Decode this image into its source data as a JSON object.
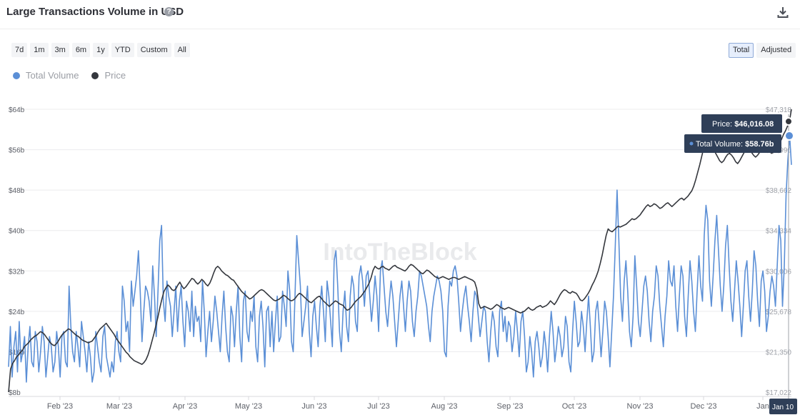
{
  "header": {
    "title": "Large Transactions Volume in USD",
    "help_glyph": "?"
  },
  "ranges": [
    "7d",
    "1m",
    "3m",
    "6m",
    "1y",
    "YTD",
    "Custom",
    "All"
  ],
  "modes": {
    "total": "Total",
    "adjusted": "Adjusted",
    "selected": "total"
  },
  "watermark": "IntoTheBlock",
  "tooltip": {
    "price_label": "Price:",
    "price_value": "$46,016.08",
    "volume_label": "Total Volume:",
    "volume_value": "$58.76b",
    "date": "Jan 10"
  },
  "colors": {
    "volume": "#5b8fd6",
    "price": "#34373d",
    "tooltip_bg": "#2f3f58"
  },
  "chart_data": {
    "type": "line",
    "x_tick_labels": [
      "Feb '23",
      "Mar '23",
      "Apr '23",
      "May '23",
      "Jun '23",
      "Jul '23",
      "Aug '23",
      "Sep '23",
      "Oct '23",
      "Nov '23",
      "Dec '23",
      "Jan"
    ],
    "y_left_ticks": [
      "$8b",
      "$16b",
      "$24b",
      "$32b",
      "$40b",
      "$48b",
      "$56b",
      "$64b"
    ],
    "y_left_range": [
      8,
      64
    ],
    "y_right_ticks": [
      "$17,022",
      "$21,350",
      "$25,678",
      "$30,006",
      "$34,334",
      "$38,662",
      "$42,990",
      "$47,318"
    ],
    "y_right_range": [
      17022,
      47318
    ],
    "legend_position": "top-left",
    "grid": "horizontal",
    "series": [
      {
        "name": "Total Volume",
        "axis": "left",
        "values": [
          13,
          21,
          11,
          17,
          20,
          12,
          22,
          14,
          16,
          19,
          10,
          17,
          21,
          14,
          13,
          20,
          18,
          12,
          16,
          21,
          18,
          11,
          15,
          19,
          17,
          12,
          14,
          20,
          17,
          11,
          19,
          20,
          14,
          13,
          29,
          21,
          16,
          14,
          20,
          17,
          13,
          22,
          19,
          16,
          12,
          18,
          15,
          10,
          12,
          20,
          17,
          14,
          12,
          19,
          21,
          15,
          13,
          11,
          14,
          12,
          18,
          20,
          16,
          14,
          29,
          26,
          20,
          22,
          16,
          30,
          25,
          28,
          31,
          36,
          28,
          18,
          24,
          29,
          28,
          26,
          22,
          33,
          27,
          19,
          28,
          38,
          41,
          26,
          22,
          30,
          27,
          25,
          19,
          24,
          29,
          20,
          26,
          29,
          22,
          17,
          26,
          24,
          20,
          28,
          19,
          25,
          22,
          23,
          18,
          30,
          24,
          15,
          20,
          24,
          18,
          22,
          27,
          24,
          20,
          16,
          23,
          28,
          21,
          16,
          14,
          25,
          23,
          17,
          24,
          29,
          19,
          14,
          26,
          28,
          20,
          18,
          24,
          22,
          27,
          17,
          14,
          23,
          26,
          21,
          13,
          24,
          25,
          17,
          24,
          16,
          22,
          27,
          18,
          19,
          28,
          25,
          21,
          32,
          28,
          18,
          16,
          27,
          39,
          34,
          29,
          19,
          22,
          25,
          29,
          20,
          15,
          23,
          26,
          21,
          17,
          25,
          29,
          24,
          18,
          30,
          27,
          22,
          17,
          34,
          36,
          29,
          20,
          16,
          24,
          28,
          21,
          18,
          27,
          31,
          29,
          22,
          20,
          31,
          33,
          30,
          25,
          31,
          32,
          27,
          22,
          26,
          31,
          27,
          20,
          32,
          34,
          29,
          24,
          21,
          26,
          30,
          27,
          22,
          17,
          22,
          27,
          30,
          25,
          20,
          26,
          30,
          28,
          22,
          19,
          24,
          27,
          32,
          31,
          29,
          27,
          25,
          21,
          18,
          24,
          27,
          29,
          31,
          30,
          28,
          24,
          16,
          15,
          25,
          30,
          29,
          32,
          33,
          31,
          26,
          20,
          24,
          27,
          29,
          25,
          22,
          18,
          24,
          28,
          27,
          23,
          19,
          22,
          25,
          24,
          18,
          14,
          20,
          24,
          22,
          17,
          15,
          24,
          26,
          20,
          23,
          18,
          22,
          21,
          16,
          19,
          24,
          20,
          15,
          22,
          24,
          19,
          12,
          14,
          19,
          16,
          11,
          18,
          20,
          17,
          13,
          15,
          20,
          17,
          12,
          19,
          24,
          20,
          14,
          17,
          21,
          19,
          15,
          17,
          23,
          21,
          14,
          12,
          20,
          26,
          22,
          17,
          18,
          24,
          21,
          16,
          22,
          27,
          21,
          14,
          16,
          24,
          26,
          21,
          15,
          20,
          26,
          24,
          19,
          13,
          20,
          27,
          37,
          48,
          38,
          27,
          22,
          30,
          34,
          28,
          20,
          17,
          23,
          35,
          29,
          22,
          19,
          24,
          29,
          31,
          28,
          22,
          18,
          24,
          27,
          33,
          31,
          25,
          21,
          17,
          23,
          27,
          34,
          30,
          29,
          33,
          25,
          20,
          27,
          33,
          31,
          23,
          19,
          27,
          34,
          30,
          24,
          20,
          28,
          35,
          29,
          26,
          39,
          45,
          42,
          30,
          25,
          31,
          38,
          43,
          36,
          29,
          24,
          29,
          37,
          41,
          33,
          26,
          22,
          28,
          34,
          30,
          25,
          19,
          25,
          32,
          34,
          27,
          22,
          28,
          36,
          33,
          26,
          21,
          30,
          32,
          28,
          20,
          23,
          28,
          31,
          29,
          25,
          33,
          41,
          38,
          25,
          33,
          47,
          54,
          58.76,
          53
        ]
      },
      {
        "name": "Price",
        "axis": "right",
        "values": [
          17022,
          19500,
          20100,
          20400,
          20800,
          21000,
          21300,
          21500,
          21900,
          22100,
          22300,
          22600,
          22800,
          23000,
          23100,
          23300,
          23500,
          23400,
          23200,
          22900,
          22600,
          22300,
          22100,
          22000,
          22200,
          22500,
          22900,
          23200,
          23400,
          23600,
          23800,
          23700,
          23500,
          23300,
          23100,
          23000,
          22800,
          22600,
          22500,
          22400,
          22300,
          22400,
          22500,
          22800,
          23100,
          23500,
          23800,
          24000,
          24200,
          24400,
          24100,
          23800,
          23500,
          23200,
          22800,
          22500,
          22200,
          21900,
          21600,
          21300,
          21100,
          20800,
          20600,
          20400,
          20300,
          20200,
          20100,
          20000,
          20200,
          20500,
          21000,
          21700,
          22500,
          23300,
          24200,
          25100,
          26100,
          27000,
          27800,
          28200,
          28500,
          28300,
          28000,
          27900,
          28100,
          28500,
          28800,
          28400,
          28100,
          28300,
          28600,
          28900,
          29200,
          29100,
          28800,
          28600,
          28800,
          29100,
          28900,
          28600,
          28400,
          28700,
          29200,
          29800,
          30300,
          30500,
          30300,
          30000,
          29800,
          29600,
          29500,
          29300,
          29100,
          29000,
          28700,
          28400,
          28100,
          27800,
          27600,
          27400,
          27200,
          27000,
          27100,
          27300,
          27500,
          27700,
          27900,
          28000,
          27900,
          27700,
          27500,
          27300,
          27100,
          26900,
          26800,
          26900,
          27000,
          27200,
          27400,
          27300,
          27100,
          26900,
          26800,
          26900,
          27100,
          27400,
          27600,
          27500,
          27300,
          27100,
          26900,
          26700,
          26600,
          26800,
          27000,
          27200,
          27300,
          27100,
          26800,
          26600,
          26400,
          26200,
          26400,
          26600,
          26800,
          26700,
          26500,
          26400,
          26300,
          26000,
          25800,
          25900,
          26100,
          26400,
          26700,
          26900,
          27100,
          27300,
          27600,
          27900,
          28300,
          28700,
          29300,
          30100,
          30500,
          30300,
          30200,
          30400,
          30500,
          30300,
          30200,
          30100,
          30300,
          30500,
          30600,
          30400,
          30300,
          30200,
          30100,
          30000,
          30200,
          30500,
          30700,
          30600,
          30400,
          30200,
          30000,
          29800,
          29700,
          29900,
          30100,
          30000,
          29800,
          29600,
          29400,
          29300,
          29200,
          29300,
          29400,
          29300,
          29200,
          29100,
          29200,
          29300,
          29300,
          29200,
          29100,
          29200,
          29300,
          29400,
          29300,
          29200,
          29100,
          29000,
          28800,
          28100,
          26500,
          26000,
          26100,
          26200,
          26100,
          26000,
          25900,
          26000,
          26200,
          26400,
          26300,
          26100,
          26000,
          25900,
          26000,
          26100,
          26000,
          25900,
          25800,
          25700,
          25600,
          25500,
          25600,
          25700,
          25900,
          26100,
          25900,
          25800,
          25900,
          26100,
          26200,
          26300,
          26100,
          26200,
          26300,
          26500,
          26800,
          26600,
          26400,
          26700,
          27100,
          27500,
          27800,
          28000,
          27900,
          27700,
          27600,
          27800,
          27700,
          27600,
          27300,
          26900,
          26800,
          27000,
          27300,
          27600,
          28000,
          28500,
          28900,
          29400,
          30000,
          30800,
          31700,
          32800,
          33800,
          34500,
          34300,
          34200,
          34400,
          34600,
          34800,
          34700,
          34800,
          34900,
          35000,
          35200,
          35400,
          35600,
          35500,
          35600,
          35800,
          36000,
          36300,
          36600,
          36900,
          37100,
          36900,
          37000,
          37200,
          37100,
          36900,
          36700,
          36800,
          37000,
          37200,
          37300,
          37100,
          36900,
          37100,
          37300,
          37500,
          37700,
          37800,
          37600,
          37800,
          38000,
          38300,
          38600,
          39100,
          39800,
          40600,
          41400,
          42300,
          43200,
          43900,
          44300,
          44000,
          43500,
          43000,
          42600,
          42200,
          41800,
          41600,
          41800,
          42200,
          42500,
          42600,
          42400,
          42100,
          41700,
          41500,
          41800,
          42200,
          42600,
          42900,
          43100,
          42900,
          42700,
          42400,
          42200,
          42400,
          42700,
          43000,
          43300,
          43500,
          43200,
          42800,
          42600,
          42700,
          43000,
          43300,
          43700,
          44100,
          44600,
          45000,
          45500,
          46016.08,
          47318
        ]
      }
    ],
    "tooltip_point": {
      "date": "Jan 10",
      "price": 46016.08,
      "total_volume": 58.76
    }
  }
}
